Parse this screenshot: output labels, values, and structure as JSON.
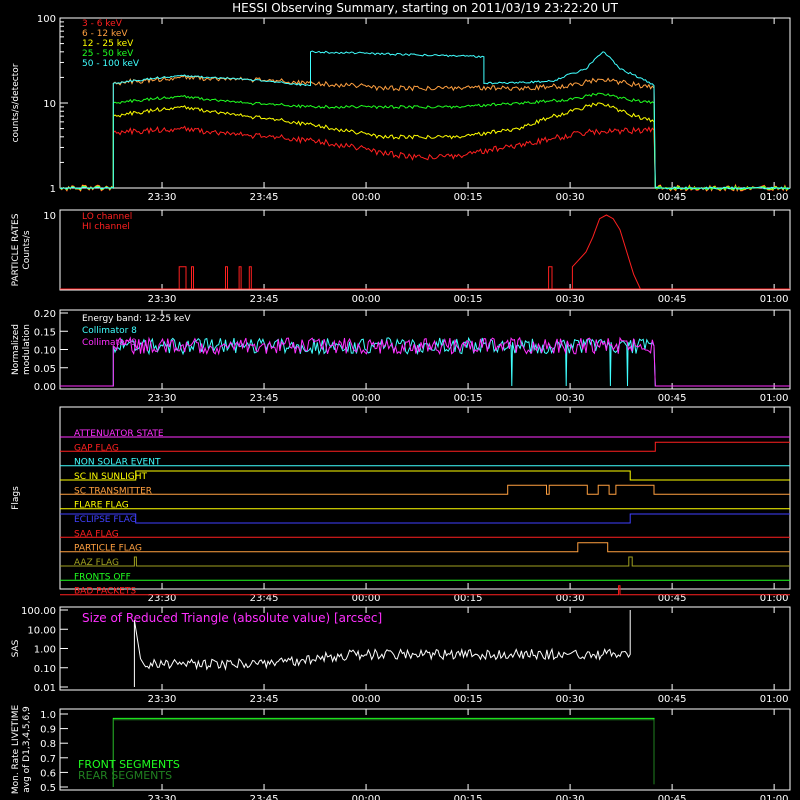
{
  "title": "HESSI Observing Summary, starting on 2011/03/19 23:22:20 UT",
  "time_axis": {
    "start": "23:22:20",
    "range_minutes": [
      -7.3333,
      100
    ],
    "ticks": [
      {
        "t": 7.6667,
        "label": "23:30"
      },
      {
        "t": 22.6667,
        "label": "23:45"
      },
      {
        "t": 37.6667,
        "label": "00:00"
      },
      {
        "t": 52.6667,
        "label": "00:15"
      },
      {
        "t": 67.6667,
        "label": "00:30"
      },
      {
        "t": 82.6667,
        "label": "00:45"
      },
      {
        "t": 97.6667,
        "label": "01:00"
      }
    ]
  },
  "chart_data": [
    {
      "type": "line",
      "ylabel": "counts/s/detector",
      "yscale": "log",
      "ylim": [
        1,
        100
      ],
      "yticks": [
        "1",
        "10",
        "100"
      ],
      "legend_placement": "top-left",
      "series": [
        {
          "name": "3 - 6 keV",
          "color": "#ff2020",
          "x": [
            -7.33,
            0.5,
            0.5,
            10,
            20,
            30,
            36,
            40,
            45,
            52,
            58,
            65,
            70,
            80,
            80.2,
            100
          ],
          "y": [
            1,
            1,
            4.5,
            5,
            4.2,
            3.6,
            3,
            2.6,
            2.3,
            2.4,
            3,
            3.8,
            4.5,
            4.8,
            1,
            1
          ]
        },
        {
          "name": "6 - 12 keV",
          "color": "#ffa040",
          "x": [
            -7.33,
            0.5,
            0.5,
            10,
            20,
            30,
            36,
            40,
            50,
            60,
            68,
            72,
            76,
            80,
            80.2,
            100
          ],
          "y": [
            1,
            1,
            17,
            20,
            19,
            17,
            16,
            15,
            15,
            15,
            16,
            19,
            17,
            15,
            1,
            1
          ]
        },
        {
          "name": "12 - 25 keV",
          "color": "#ffff00",
          "x": [
            -7.33,
            0.5,
            0.5,
            10,
            20,
            30,
            36,
            40,
            52,
            60,
            68,
            72,
            76,
            80,
            80.2,
            100
          ],
          "y": [
            1,
            1,
            7,
            9,
            7,
            5.5,
            4.5,
            4,
            4,
            5,
            8,
            10,
            7.5,
            6,
            1,
            1
          ]
        },
        {
          "name": "25 - 50 keV",
          "color": "#20ff20",
          "x": [
            -7.33,
            0.5,
            0.5,
            10,
            20,
            30,
            36,
            40,
            52,
            60,
            68,
            72,
            76,
            80,
            80.2,
            100
          ],
          "y": [
            1,
            1,
            10,
            12,
            10,
            9,
            9,
            9,
            9,
            10,
            11,
            13,
            11,
            10,
            1,
            1
          ]
        },
        {
          "name": "50 - 100 keV",
          "color": "#40ffff",
          "x": [
            -7.33,
            0.5,
            0.5,
            10,
            20,
            29.5,
            29.5,
            55,
            55,
            65,
            70,
            72.5,
            75,
            80,
            80.2,
            100
          ],
          "y": [
            1,
            1,
            17,
            21,
            19,
            16,
            40,
            35,
            17,
            18,
            25,
            40,
            25,
            16,
            1,
            1
          ]
        }
      ]
    },
    {
      "type": "line",
      "ylabel": "PARTICLE RATES",
      "ylabel2": "Counts/s",
      "ylim": [
        0,
        10
      ],
      "yticks": [
        {
          "v": 0,
          "label": ""
        },
        {
          "v": 10,
          "label": "10"
        }
      ],
      "legend_placement": "top-left",
      "series": [
        {
          "name": "LO channel",
          "color": "#ff2020",
          "x": [
            -7.33,
            10,
            10.2,
            10.2,
            11.2,
            11.2,
            12,
            12,
            12.3,
            12.3,
            17,
            17,
            17.3,
            17.3,
            19,
            19,
            19.3,
            19.3,
            20.5,
            20.5,
            20.8,
            20.8,
            64.5,
            64.5,
            65,
            65,
            68,
            68,
            70,
            71,
            72,
            73,
            74,
            75,
            76,
            77,
            78,
            100
          ],
          "y": [
            0,
            0,
            0,
            3,
            3,
            0,
            0,
            3,
            3,
            0,
            0,
            3,
            3,
            0,
            0,
            3,
            3,
            0,
            0,
            3,
            3,
            0,
            0,
            3,
            3,
            0,
            0,
            3,
            5,
            7,
            9.5,
            10,
            9.5,
            8,
            5,
            2,
            0,
            0
          ]
        },
        {
          "name": "HI channel",
          "color": "#ff2020",
          "x": [
            -7.33,
            100
          ],
          "y": [
            0,
            0
          ]
        }
      ]
    },
    {
      "type": "line",
      "ylabel": "Normalized",
      "ylabel2": "modulation",
      "ylim": [
        0,
        0.2
      ],
      "yticks": [
        {
          "v": 0,
          "label": "0.00"
        },
        {
          "v": 0.05,
          "label": "0.05"
        },
        {
          "v": 0.1,
          "label": "0.10"
        },
        {
          "v": 0.15,
          "label": "0.15"
        },
        {
          "v": 0.2,
          "label": "0.20"
        }
      ],
      "legend_placement": "top-left",
      "legend_header": "Energy band:  12-25 keV",
      "series": [
        {
          "name": "Collimator 8",
          "color": "#40ffff",
          "x": [
            -7.33,
            0.5,
            0.5,
            59,
            59.1,
            59.2,
            59.3,
            67,
            67.1,
            67.2,
            67.3,
            73.5,
            73.6,
            73.7,
            73.8,
            76,
            76.1,
            76.2,
            76.3,
            80,
            80.2,
            100
          ],
          "y": [
            0,
            0,
            0.11,
            0.11,
            0,
            0.12,
            0.11,
            0.11,
            0,
            0.12,
            0.11,
            0.11,
            0,
            0.12,
            0.11,
            0.11,
            0,
            0.12,
            0.11,
            0.11,
            0,
            0
          ]
        },
        {
          "name": "Collimator 9",
          "color": "#ff30ff",
          "x": [
            -7.33,
            0.5,
            0.5,
            80,
            80.2,
            100
          ],
          "y": [
            0,
            0,
            0.11,
            0.11,
            0,
            0
          ]
        }
      ]
    },
    {
      "type": "line",
      "ylabel": "Flags",
      "flags": [
        {
          "name": "ATTENUATOR STATE",
          "color": "#ff30ff",
          "x": [
            -7.33,
            100
          ],
          "y": [
            0,
            0
          ]
        },
        {
          "name": "GAP FLAG",
          "color": "#ff2020",
          "x": [
            -7.33,
            80.2,
            80.2,
            100
          ],
          "y": [
            0,
            0,
            1,
            1
          ]
        },
        {
          "name": "NON SOLAR EVENT",
          "color": "#40ffff",
          "x": [
            -7.33,
            100
          ],
          "y": [
            0,
            0
          ]
        },
        {
          "name": "SC IN SUNLIGHT",
          "color": "#ffff00",
          "x": [
            -7.33,
            3.8,
            3.8,
            76.5,
            76.5,
            100
          ],
          "y": [
            0,
            0,
            1,
            1,
            0,
            0
          ]
        },
        {
          "name": "SC TRANSMITTER",
          "color": "#ffa040",
          "x": [
            -7.33,
            58.5,
            58.5,
            64.2,
            64.2,
            64.6,
            64.6,
            70.2,
            70.2,
            71.8,
            71.8,
            73.4,
            73.4,
            74.4,
            74.4,
            80,
            80,
            100
          ],
          "y": [
            0,
            0,
            1,
            1,
            0,
            0,
            1,
            1,
            0,
            0,
            1,
            1,
            0,
            0,
            1,
            1,
            0,
            0
          ]
        },
        {
          "name": "FLARE FLAG",
          "color": "#ffff00",
          "x": [
            -7.33,
            100
          ],
          "y": [
            0,
            0
          ]
        },
        {
          "name": "ECLIPSE FLAG",
          "color": "#4040ff",
          "x": [
            -7.33,
            3.8,
            3.8,
            76.5,
            76.5,
            100
          ],
          "y": [
            1,
            1,
            0,
            0,
            1,
            1
          ]
        },
        {
          "name": "SAA FLAG",
          "color": "#ff2020",
          "x": [
            -7.33,
            100
          ],
          "y": [
            0,
            0
          ]
        },
        {
          "name": "PARTICLE FLAG",
          "color": "#ffa040",
          "x": [
            -7.33,
            68.8,
            68.8,
            73.2,
            73.2,
            100
          ],
          "y": [
            0,
            0,
            1,
            1,
            0,
            0
          ]
        },
        {
          "name": "AAZ FLAG",
          "color": "#a0a020",
          "x": [
            -7.33,
            3.6,
            3.6,
            3.9,
            3.9,
            76.3,
            76.3,
            76.8,
            76.8,
            100
          ],
          "y": [
            0,
            0,
            1,
            1,
            0,
            0,
            1,
            1,
            0,
            0
          ]
        },
        {
          "name": "FRONTS OFF",
          "color": "#20ff20",
          "x": [
            -7.33,
            100
          ],
          "y": [
            0,
            0
          ]
        },
        {
          "name": "BAD PACKETS",
          "color": "#ff2020",
          "x": [
            -7.33,
            74.8,
            74.8,
            75,
            75,
            100
          ],
          "y": [
            0,
            0,
            1,
            1,
            0,
            0
          ]
        }
      ]
    },
    {
      "type": "line",
      "ylabel": "SAS",
      "yscale": "log",
      "ylim": [
        0.01,
        100
      ],
      "yticks": [
        {
          "v": 0.01,
          "label": "0.01"
        },
        {
          "v": 0.1,
          "label": "0.10"
        },
        {
          "v": 1,
          "label": "1.00"
        },
        {
          "v": 10,
          "label": "10.00"
        },
        {
          "v": 100,
          "label": "100.00"
        }
      ],
      "annotation": "Size of Reduced Triangle (absolute value) [arcsec]",
      "series": [
        {
          "name": "",
          "color": "#ffffff",
          "x": [
            3.6,
            3.6,
            4.5,
            5,
            10,
            20,
            28,
            35,
            40,
            50,
            60,
            70,
            76.5,
            76.5
          ],
          "y": [
            0.01,
            30,
            0.3,
            0.15,
            0.15,
            0.16,
            0.22,
            0.45,
            0.5,
            0.5,
            0.5,
            0.5,
            0.5,
            100
          ]
        }
      ]
    },
    {
      "type": "line",
      "ylabel": "Mon. Rate LIVETIME",
      "ylabel2": "avg of D1,3,4,5,6,9",
      "ylim": [
        0.5,
        1.0
      ],
      "yticks": [
        {
          "v": 0.5,
          "label": "0.5"
        },
        {
          "v": 0.6,
          "label": "0.6"
        },
        {
          "v": 0.7,
          "label": "0.7"
        },
        {
          "v": 0.8,
          "label": "0.8"
        },
        {
          "v": 0.9,
          "label": "0.9"
        },
        {
          "v": 1.0,
          "label": "1.0"
        }
      ],
      "legend_placement": "bottom-left",
      "series": [
        {
          "name": "FRONT SEGMENTS",
          "color": "#20ff20",
          "x": [
            0.5,
            0.5,
            80,
            80
          ],
          "y": [
            0.5,
            0.97,
            0.97,
            0.52
          ]
        },
        {
          "name": "REAR SEGMENTS",
          "color": "#208020",
          "x": [
            0.5,
            0.5,
            80,
            80
          ],
          "y": [
            0.5,
            0.96,
            0.96,
            0.52
          ]
        }
      ]
    }
  ]
}
